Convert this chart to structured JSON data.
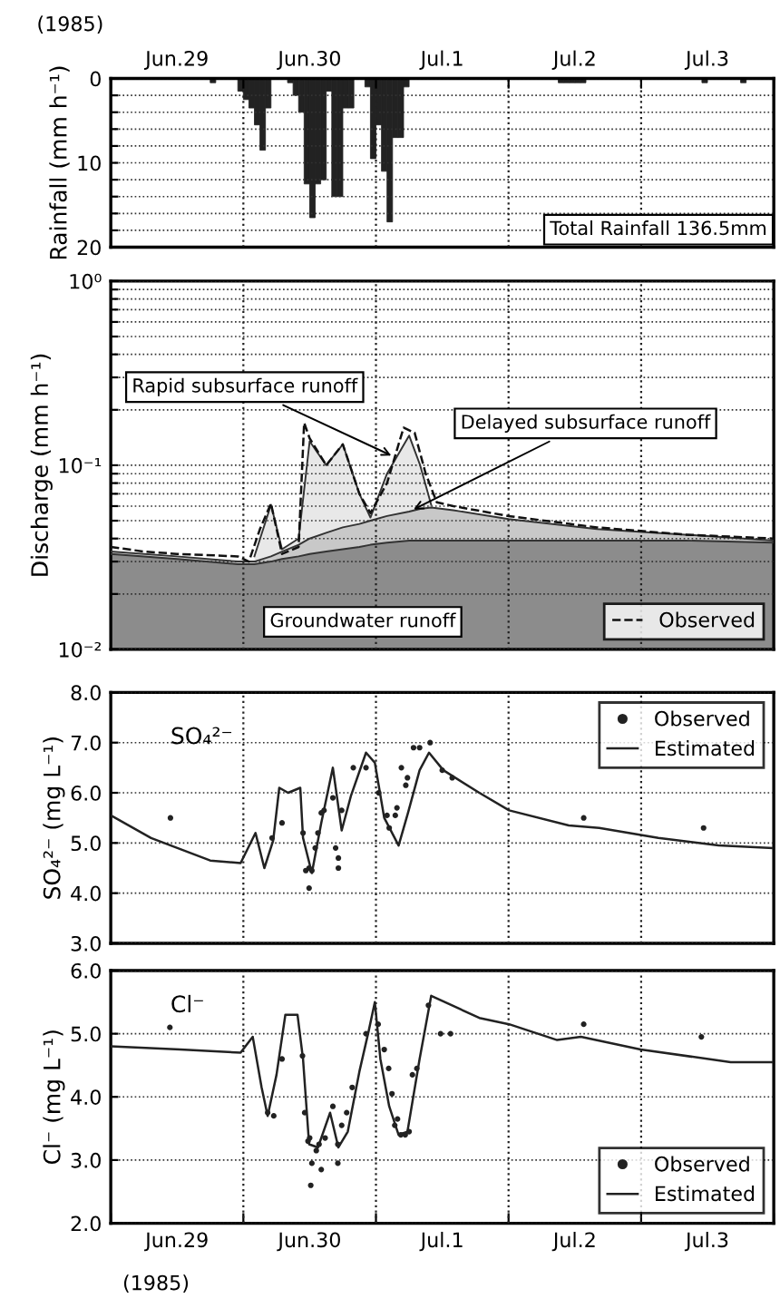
{
  "chart_data": [
    {
      "type": "bar",
      "ylabel": "Rainfall (mm h⁻¹)",
      "annotations": [
        "(1985)",
        "Total Rainfall 136.5mm"
      ],
      "x": [
        "1985-06-29T18:30",
        "1985-06-29T23:30",
        "1985-06-30T00:30",
        "1985-06-30T01:30",
        "1985-06-30T02:30",
        "1985-06-30T03:30",
        "1985-06-30T04:30",
        "1985-06-30T08:30",
        "1985-06-30T09:30",
        "1985-06-30T10:30",
        "1985-06-30T11:30",
        "1985-06-30T12:30",
        "1985-06-30T13:30",
        "1985-06-30T14:30",
        "1985-06-30T15:30",
        "1985-06-30T16:30",
        "1985-06-30T17:30",
        "1985-06-30T18:30",
        "1985-06-30T19:30",
        "1985-06-30T22:30",
        "1985-06-30T23:30",
        "1985-07-01T00:30",
        "1985-07-01T01:30",
        "1985-07-01T02:30",
        "1985-07-01T03:30",
        "1985-07-01T04:30",
        "1985-07-01T05:30",
        "1985-07-02T09:30",
        "1985-07-02T10:30",
        "1985-07-02T11:30",
        "1985-07-02T12:30",
        "1985-07-02T13:30",
        "1985-07-03T11:30",
        "1985-07-03T18:30"
      ],
      "values": [
        0.5,
        1.5,
        2.5,
        3.5,
        5.5,
        8.5,
        3.5,
        0.5,
        2,
        4,
        12.5,
        16.5,
        12.5,
        12,
        1.5,
        14,
        14,
        3.5,
        3.5,
        1,
        9.5,
        5.5,
        11,
        17,
        7,
        7,
        1,
        0.5,
        0.5,
        0.5,
        0.5,
        0.5,
        0.5,
        0.5
      ],
      "color": "#222222",
      "xlim": [
        "1985-06-29",
        "1985-07-04"
      ],
      "x2lim": [
        "1985-06-29",
        "1985-07-04"
      ],
      "x2ticks": [
        {
          "value": "1985-06-29",
          "label": null
        },
        {
          "value": "1985-06-29T12:00",
          "label": "Jun.29"
        },
        {
          "value": "1985-06-30",
          "label": null
        },
        {
          "value": "1985-06-30T12:00",
          "label": "Jun.30"
        },
        {
          "value": "1985-07-01",
          "label": null
        },
        {
          "value": "1985-07-01T12:00",
          "label": "Jul.1"
        },
        {
          "value": "1985-07-02",
          "label": null
        },
        {
          "value": "1985-07-02T12:00",
          "label": "Jul.2"
        },
        {
          "value": "1985-07-03",
          "label": null
        },
        {
          "value": "1985-07-03T12:00",
          "label": "Jul.3"
        },
        {
          "value": "1985-07-04",
          "label": null
        }
      ],
      "ylim": [
        20,
        0
      ],
      "yticks": [
        0,
        {
          "value": 2,
          "label": null
        },
        {
          "value": 4,
          "label": null
        },
        {
          "value": 6,
          "label": null
        },
        {
          "value": 8,
          "label": null
        },
        10,
        {
          "value": 12,
          "label": null
        },
        {
          "value": 14,
          "label": null
        },
        {
          "value": 16,
          "label": null
        },
        {
          "value": 18,
          "label": null
        },
        20
      ],
      "grid": "y",
      "ref_lines": [
        {
          "axis": "x",
          "value": "1985-06-30",
          "line_style": "dotted"
        },
        {
          "axis": "x",
          "value": "1985-07-01",
          "line_style": "dotted"
        },
        {
          "axis": "x",
          "value": "1985-07-02",
          "line_style": "dotted"
        },
        {
          "axis": "x",
          "value": "1985-07-03",
          "line_style": "dotted"
        }
      ]
    },
    {
      "type": "area",
      "log": "y",
      "ylabel": "Discharge (mm h⁻¹)",
      "annotations": [
        {
          "text": "Rapid subsurface runoff",
          "x": "1985-07-01T03:36",
          "y": 0.11
        },
        {
          "text": "Delayed subsurface runoff",
          "x": "1985-07-01T06:00",
          "y": 0.056
        },
        "Groundwater runoff"
      ],
      "x": [
        "1985-06-29T00:00",
        "1985-06-29T12:00",
        "1985-06-29T23:00",
        "1985-06-30T02:00",
        "1985-06-30T05:00",
        "1985-06-30T07:00",
        "1985-06-30T10:00",
        "1985-06-30T12:00",
        "1985-06-30T15:00",
        "1985-06-30T18:00",
        "1985-06-30T21:00",
        "1985-06-30T23:00",
        "1985-07-01T02:00",
        "1985-07-01T06:00",
        "1985-07-01T08:00",
        "1985-07-01T10:00",
        "1985-07-01T14:00",
        "1985-07-02T00:00",
        "1985-07-02T16:00",
        "1985-07-03T08:00",
        "1985-07-04T00:00"
      ],
      "series": [
        {
          "color": "#e8e8e8",
          "values": [
            null,
            null,
            null,
            0.032,
            0.061,
            0.035,
            0.04,
            0.135,
            0.1,
            0.13,
            0.07,
            0.052,
            0.09,
            0.145,
            0.1,
            0.061,
            null,
            null,
            null,
            null,
            null
          ]
        },
        {
          "color": "#c8c8c8",
          "values": [
            0.034,
            0.032,
            0.03,
            0.03,
            0.032,
            0.034,
            0.037,
            0.04,
            0.043,
            0.046,
            0.048,
            0.05,
            0.053,
            0.056,
            0.058,
            0.059,
            0.057,
            0.051,
            0.045,
            0.042,
            0.039
          ]
        },
        {
          "color": "#8c8c8c",
          "values": [
            0.033,
            0.031,
            0.029,
            0.029,
            0.03,
            0.031,
            0.032,
            0.033,
            0.034,
            0.035,
            0.036,
            0.037,
            0.038,
            0.039,
            0.039,
            0.039,
            0.039,
            0.039,
            0.039,
            0.039,
            0.038
          ]
        },
        {
          "name": "Observed",
          "type": "line",
          "line_style": "dashed",
          "color": "#111111",
          "x": [
            "1985-06-29T00:00",
            "1985-06-29T06:00",
            "1985-06-29T12:00",
            "1985-06-29T23:00",
            "1985-06-30T01:00",
            "1985-06-30T03:00",
            "1985-06-30T05:00",
            "1985-06-30T07:00",
            "1985-06-30T10:00",
            "1985-06-30T11:00",
            "1985-06-30T12:00",
            "1985-06-30T15:00",
            "1985-06-30T18:00",
            "1985-06-30T21:00",
            "1985-06-30T23:00",
            "1985-07-01T02:00",
            "1985-07-01T05:00",
            "1985-07-01T07:00",
            "1985-07-01T09:00",
            "1985-07-01T11:00",
            "1985-07-01T14:00",
            "1985-07-02T00:00",
            "1985-07-02T16:00",
            "1985-07-03T08:00",
            "1985-07-04T00:00"
          ],
          "values": [
            0.036,
            0.034,
            0.033,
            0.032,
            0.03,
            0.045,
            0.062,
            0.033,
            0.036,
            0.17,
            0.14,
            0.1,
            0.13,
            0.07,
            0.055,
            0.08,
            0.16,
            0.15,
            0.09,
            0.063,
            0.06,
            0.053,
            0.046,
            0.042,
            0.04
          ]
        }
      ],
      "xlim": [
        "1985-06-29",
        "1985-07-04"
      ],
      "ylim": [
        0.01,
        1
      ],
      "yticks": [
        {
          "value": 0.01,
          "label": "10⁻²"
        },
        {
          "value": 0.02,
          "label": null
        },
        {
          "value": 0.03,
          "label": null
        },
        {
          "value": 0.04,
          "label": null
        },
        {
          "value": 0.05,
          "label": null
        },
        {
          "value": 0.06,
          "label": null
        },
        {
          "value": 0.07,
          "label": null
        },
        {
          "value": 0.08,
          "label": null
        },
        {
          "value": 0.09,
          "label": null
        },
        {
          "value": 0.1,
          "label": "10⁻¹"
        },
        {
          "value": 0.2,
          "label": null
        },
        {
          "value": 0.3,
          "label": null
        },
        {
          "value": 0.4,
          "label": null
        },
        {
          "value": 0.5,
          "label": null
        },
        {
          "value": 0.6,
          "label": null
        },
        {
          "value": 0.7,
          "label": null
        },
        {
          "value": 0.8,
          "label": null
        },
        {
          "value": 0.9,
          "label": null
        },
        {
          "value": 1,
          "label": "10⁰"
        }
      ],
      "tick_labels": "y",
      "grid": "y",
      "legend": "bottom right",
      "ref_lines": [
        {
          "axis": "x",
          "value": "1985-06-30",
          "line_style": "dotted"
        },
        {
          "axis": "x",
          "value": "1985-07-01",
          "line_style": "dotted"
        },
        {
          "axis": "x",
          "value": "1985-07-02",
          "line_style": "dotted"
        },
        {
          "axis": "x",
          "value": "1985-07-03",
          "line_style": "dotted"
        }
      ]
    },
    {
      "type": "line",
      "ylabel": "SO₄²⁻ (mg L⁻¹)",
      "annotations": [
        "SO₄²⁻"
      ],
      "series": [
        {
          "name": "Observed",
          "type": "scatter",
          "marker": "circle",
          "color": "#222222",
          "x": [
            "1985-06-29T10:48",
            "1985-06-30T05:12",
            "1985-06-30T07:00",
            "1985-06-30T10:48",
            "1985-06-30T11:18",
            "1985-06-30T11:54",
            "1985-06-30T12:24",
            "1985-06-30T11:54",
            "1985-06-30T13:00",
            "1985-06-30T13:30",
            "1985-06-30T14:06",
            "1985-06-30T14:36",
            "1985-06-30T16:12",
            "1985-06-30T16:42",
            "1985-06-30T17:12",
            "1985-06-30T17:12",
            "1985-06-30T17:48",
            "1985-06-30T19:54",
            "1985-06-30T22:12",
            "1985-07-01T00:30",
            "1985-07-01T02:00",
            "1985-07-01T02:24",
            "1985-07-01T03:30",
            "1985-07-01T03:48",
            "1985-07-01T04:36",
            "1985-07-01T05:24",
            "1985-07-01T05:42",
            "1985-07-01T06:48",
            "1985-07-01T07:54",
            "1985-07-01T09:48",
            "1985-07-01T12:00",
            "1985-07-01T13:48",
            "1985-07-02T13:36",
            "1985-07-03T11:18"
          ],
          "values": [
            5.5,
            5.1,
            5.4,
            5.2,
            4.45,
            4.5,
            4.45,
            4.1,
            4.9,
            5.2,
            5.6,
            5.65,
            5.9,
            4.9,
            4.7,
            4.5,
            5.65,
            6.5,
            6.5,
            6.0,
            5.55,
            5.3,
            5.55,
            5.7,
            6.5,
            6.15,
            6.3,
            6.9,
            6.9,
            7.0,
            6.45,
            6.3,
            5.5,
            5.3
          ]
        },
        {
          "name": "Estimated",
          "type": "line",
          "marker": "none",
          "color": "#222222",
          "x": [
            "1985-06-29T00:00",
            "1985-06-29T07:18",
            "1985-06-29T18:00",
            "1985-06-29T23:30",
            "1985-06-30T02:12",
            "1985-06-30T03:48",
            "1985-06-30T05:24",
            "1985-06-30T06:30",
            "1985-06-30T08:06",
            "1985-06-30T10:18",
            "1985-06-30T10:48",
            "1985-06-30T12:24",
            "1985-06-30T14:06",
            "1985-06-30T16:12",
            "1985-06-30T17:48",
            "1985-06-30T19:30",
            "1985-06-30T22:12",
            "1985-06-30T23:48",
            "1985-07-01T01:30",
            "1985-07-01T04:06",
            "1985-07-01T05:48",
            "1985-07-01T07:54",
            "1985-07-01T09:36",
            "1985-07-01T12:12",
            "1985-07-01T18:42",
            "1985-07-02T00:06",
            "1985-07-02T10:54",
            "1985-07-02T16:24",
            "1985-07-03T03:06",
            "1985-07-03T14:00",
            "1985-07-03T23:42"
          ],
          "values": [
            5.55,
            5.1,
            4.65,
            4.6,
            5.2,
            4.5,
            5.05,
            6.1,
            6.0,
            6.1,
            5.1,
            4.4,
            5.4,
            6.5,
            5.25,
            5.95,
            6.8,
            6.6,
            5.5,
            4.95,
            5.6,
            6.45,
            6.8,
            6.45,
            6.0,
            5.65,
            5.35,
            5.3,
            5.1,
            4.95,
            4.9
          ]
        }
      ],
      "xlim": [
        "1985-06-29",
        "1985-07-04"
      ],
      "ylim": [
        3,
        8
      ],
      "yticks": [
        {
          "value": 3,
          "label": "3.0"
        },
        {
          "value": 4,
          "label": "4.0"
        },
        {
          "value": 5,
          "label": "5.0"
        },
        {
          "value": 6,
          "label": "6.0"
        },
        {
          "value": 7,
          "label": "7.0"
        },
        {
          "value": 8,
          "label": "8.0"
        }
      ],
      "tick_labels": "y",
      "grid": "y",
      "legend": "top right",
      "ref_lines": [
        {
          "axis": "x",
          "value": "1985-06-30",
          "line_style": "dotted"
        },
        {
          "axis": "x",
          "value": "1985-07-01",
          "line_style": "dotted"
        },
        {
          "axis": "x",
          "value": "1985-07-02",
          "line_style": "dotted"
        },
        {
          "axis": "x",
          "value": "1985-07-03",
          "line_style": "dotted"
        }
      ]
    },
    {
      "type": "line",
      "ylabel": "Cl⁻ (mg L⁻¹)",
      "annotations": [
        "Cl⁻",
        "(1985)"
      ],
      "series": [
        {
          "name": "Observed",
          "type": "scatter",
          "marker": "circle",
          "color": "#222222",
          "x": [
            "1985-06-29T10:42",
            "1985-06-30T04:24",
            "1985-06-30T05:30",
            "1985-06-30T07:00",
            "1985-06-30T10:42",
            "1985-06-30T11:06",
            "1985-06-30T11:42",
            "1985-06-30T12:00",
            "1985-06-30T12:24",
            "1985-06-30T12:12",
            "1985-06-30T13:12",
            "1985-06-30T13:42",
            "1985-06-30T14:06",
            "1985-06-30T14:48",
            "1985-06-30T16:12",
            "1985-06-30T17:06",
            "1985-06-30T17:06",
            "1985-06-30T17:48",
            "1985-06-30T18:42",
            "1985-06-30T19:42",
            "1985-06-30T22:12",
            "1985-07-01T00:24",
            "1985-07-01T01:30",
            "1985-07-01T02:18",
            "1985-07-01T02:54",
            "1985-07-01T03:24",
            "1985-07-01T03:54",
            "1985-07-01T04:30",
            "1985-07-01T05:18",
            "1985-07-01T06:00",
            "1985-07-01T06:36",
            "1985-07-01T07:24",
            "1985-07-01T09:30",
            "1985-07-01T11:42",
            "1985-07-01T13:30",
            "1985-07-02T13:36",
            "1985-07-03T10:54"
          ],
          "values": [
            5.1,
            3.75,
            3.7,
            4.6,
            4.65,
            3.75,
            3.3,
            3.35,
            2.95,
            2.6,
            3.15,
            3.25,
            2.85,
            3.35,
            3.85,
            2.95,
            3.25,
            3.55,
            3.75,
            4.15,
            5.0,
            5.15,
            4.75,
            4.45,
            4.05,
            3.55,
            3.65,
            3.4,
            3.4,
            3.45,
            4.35,
            4.45,
            5.45,
            5.0,
            5.0,
            5.15,
            4.95
          ]
        },
        {
          "name": "Estimated",
          "type": "line",
          "marker": "none",
          "color": "#222222",
          "x": [
            "1985-06-29T00:00",
            "1985-06-29T12:36",
            "1985-06-29T23:30",
            "1985-06-30T01:42",
            "1985-06-30T03:18",
            "1985-06-30T04:24",
            "1985-06-30T06:00",
            "1985-06-30T07:36",
            "1985-06-30T09:48",
            "1985-06-30T10:48",
            "1985-06-30T11:54",
            "1985-06-30T13:30",
            "1985-06-30T15:42",
            "1985-06-30T17:12",
            "1985-06-30T18:54",
            "1985-06-30T21:00",
            "1985-06-30T22:42",
            "1985-06-30T23:48",
            "1985-07-01T00:48",
            "1985-07-01T02:24",
            "1985-07-01T04:06",
            "1985-07-01T05:42",
            "1985-07-01T07:54",
            "1985-07-01T10:00",
            "1985-07-01T18:42",
            "1985-07-02T00:06",
            "1985-07-02T08:48",
            "1985-07-02T13:06",
            "1985-07-02T23:54",
            "1985-07-03T16:12",
            "1985-07-03T23:42"
          ],
          "values": [
            4.8,
            4.75,
            4.7,
            4.95,
            4.15,
            3.7,
            4.35,
            5.3,
            5.3,
            4.6,
            3.25,
            3.2,
            3.75,
            3.2,
            3.45,
            4.4,
            5.05,
            5.5,
            4.6,
            3.85,
            3.4,
            3.45,
            4.6,
            5.6,
            5.25,
            5.15,
            4.9,
            4.95,
            4.75,
            4.55,
            4.55
          ]
        }
      ],
      "xlim": [
        "1985-06-29",
        "1985-07-04"
      ],
      "ylim": [
        2,
        6
      ],
      "xticks": [
        {
          "value": "1985-06-29",
          "label": null
        },
        {
          "value": "1985-06-29T12:00",
          "label": "Jun.29"
        },
        {
          "value": "1985-06-30",
          "label": null
        },
        {
          "value": "1985-06-30T12:00",
          "label": "Jun.30"
        },
        {
          "value": "1985-07-01",
          "label": null
        },
        {
          "value": "1985-07-01T12:00",
          "label": "Jul.1"
        },
        {
          "value": "1985-07-02",
          "label": null
        },
        {
          "value": "1985-07-02T12:00",
          "label": "Jul.2"
        },
        {
          "value": "1985-07-03",
          "label": null
        },
        {
          "value": "1985-07-03T12:00",
          "label": "Jul.3"
        },
        {
          "value": "1985-07-04",
          "label": null
        }
      ],
      "yticks": [
        {
          "value": 2,
          "label": "2.0"
        },
        {
          "value": 3,
          "label": "3.0"
        },
        {
          "value": 4,
          "label": "4.0"
        },
        {
          "value": 5,
          "label": "5.0"
        },
        {
          "value": 6,
          "label": "6.0"
        }
      ],
      "grid": "y",
      "legend": "bottom right",
      "ref_lines": [
        {
          "axis": "x",
          "value": "1985-06-30",
          "line_style": "dotted"
        },
        {
          "axis": "x",
          "value": "1985-07-01",
          "line_style": "dotted"
        },
        {
          "axis": "x",
          "value": "1985-07-02",
          "line_style": "dotted"
        },
        {
          "axis": "x",
          "value": "1985-07-03",
          "line_style": "dotted"
        }
      ]
    }
  ]
}
